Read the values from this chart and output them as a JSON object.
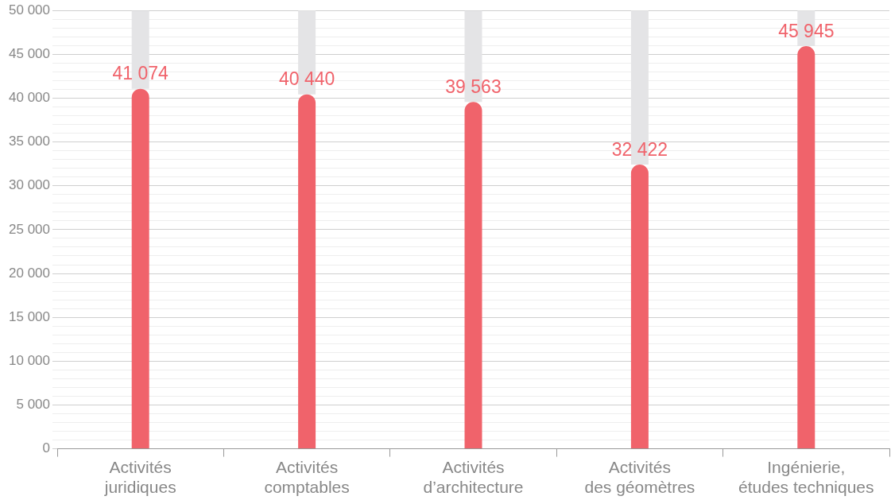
{
  "chart_data": {
    "type": "bar",
    "categories": [
      "Activités\njuridiques",
      "Activités\ncomptables",
      "Activités\nd’architecture",
      "Activités\ndes géomètres",
      "Ingénierie,\nétudes techniques"
    ],
    "series": [
      {
        "color": "#f0636b",
        "values": [
          41074,
          40440,
          39563,
          32422,
          45945
        ],
        "value_labels": [
          "41 074",
          "40 440",
          "39 563",
          "32 422",
          "45 945"
        ]
      },
      {
        "color": "#e4e4e6",
        "values": [
          8900,
          9600,
          10400,
          17600,
          4100
        ]
      }
    ],
    "stacked": true,
    "ylim": [
      0,
      50000
    ],
    "yticks": [
      {
        "value": 0,
        "label": "0"
      },
      {
        "value": 1000,
        "label": null
      },
      {
        "value": 2000,
        "label": null
      },
      {
        "value": 3000,
        "label": null
      },
      {
        "value": 4000,
        "label": null
      },
      {
        "value": 5000,
        "label": "5 000"
      },
      {
        "value": 6000,
        "label": null
      },
      {
        "value": 7000,
        "label": null
      },
      {
        "value": 8000,
        "label": null
      },
      {
        "value": 9000,
        "label": null
      },
      {
        "value": 10000,
        "label": "10 000"
      },
      {
        "value": 11000,
        "label": null
      },
      {
        "value": 12000,
        "label": null
      },
      {
        "value": 13000,
        "label": null
      },
      {
        "value": 14000,
        "label": null
      },
      {
        "value": 15000,
        "label": "15 000"
      },
      {
        "value": 16000,
        "label": null
      },
      {
        "value": 17000,
        "label": null
      },
      {
        "value": 18000,
        "label": null
      },
      {
        "value": 19000,
        "label": null
      },
      {
        "value": 20000,
        "label": "20 000"
      },
      {
        "value": 21000,
        "label": null
      },
      {
        "value": 22000,
        "label": null
      },
      {
        "value": 23000,
        "label": null
      },
      {
        "value": 24000,
        "label": null
      },
      {
        "value": 25000,
        "label": "25 000"
      },
      {
        "value": 26000,
        "label": null
      },
      {
        "value": 27000,
        "label": null
      },
      {
        "value": 28000,
        "label": null
      },
      {
        "value": 29000,
        "label": null
      },
      {
        "value": 30000,
        "label": "30 000"
      },
      {
        "value": 31000,
        "label": null
      },
      {
        "value": 32000,
        "label": null
      },
      {
        "value": 33000,
        "label": null
      },
      {
        "value": 34000,
        "label": null
      },
      {
        "value": 35000,
        "label": "35 000"
      },
      {
        "value": 36000,
        "label": null
      },
      {
        "value": 37000,
        "label": null
      },
      {
        "value": 38000,
        "label": null
      },
      {
        "value": 39000,
        "label": null
      },
      {
        "value": 40000,
        "label": "40 000"
      },
      {
        "value": 41000,
        "label": null
      },
      {
        "value": 42000,
        "label": null
      },
      {
        "value": 43000,
        "label": null
      },
      {
        "value": 44000,
        "label": null
      },
      {
        "value": 45000,
        "label": "45 000"
      },
      {
        "value": 46000,
        "label": null
      },
      {
        "value": 47000,
        "label": null
      },
      {
        "value": 48000,
        "label": null
      },
      {
        "value": 49000,
        "label": null
      },
      {
        "value": 50000,
        "label": "50 000"
      }
    ],
    "grid": "y",
    "legend": false
  }
}
